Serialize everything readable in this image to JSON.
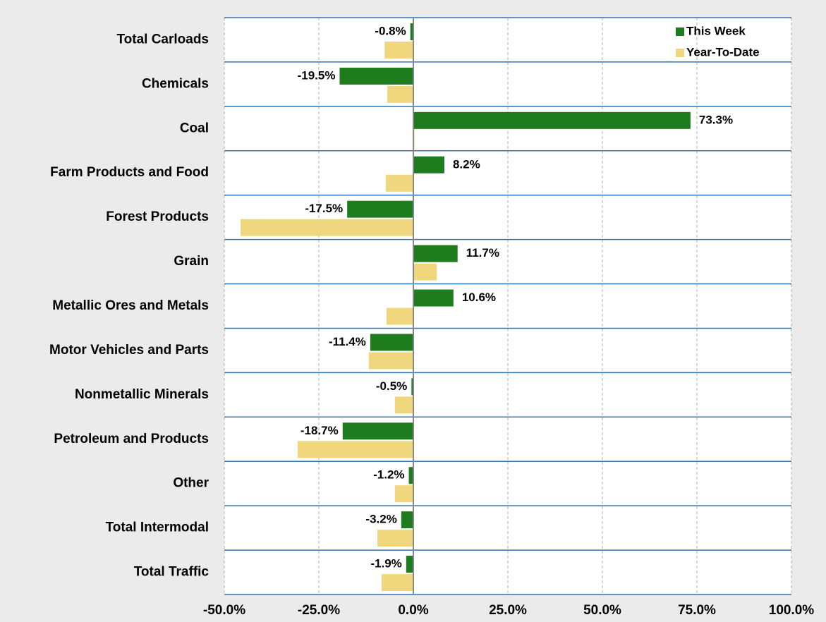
{
  "chart_data": {
    "type": "barh",
    "categories": [
      "Total Carloads",
      "Chemicals",
      "Coal",
      "Farm Products and Food",
      "Forest Products",
      "Grain",
      "Metallic Ores and Metals",
      "Motor Vehicles and Parts",
      "Nonmetallic Minerals",
      "Petroleum and Products",
      "Other",
      "Total Intermodal",
      "Total Traffic"
    ],
    "series": [
      {
        "name": "This Week",
        "color": "#1e7b1e",
        "values": [
          -0.8,
          -19.5,
          73.3,
          8.2,
          -17.5,
          11.7,
          10.6,
          -11.4,
          -0.5,
          -18.7,
          -1.2,
          -3.2,
          -1.9
        ],
        "value_labels": [
          "-0.8%",
          "-19.5%",
          "73.3%",
          "8.2%",
          "-17.5%",
          "11.7%",
          "10.6%",
          "-11.4%",
          "-0.5%",
          "-18.7%",
          "-1.2%",
          "-3.2%",
          "-1.9%"
        ]
      },
      {
        "name": "Year-To-Date",
        "color": "#f0d77e",
        "values": [
          -7.6,
          -6.9,
          0.3,
          -7.3,
          -45.7,
          6.2,
          -7.1,
          -11.8,
          -4.9,
          -30.6,
          -4.9,
          -9.5,
          -8.4
        ]
      }
    ],
    "xlim": [
      -50,
      100
    ],
    "xticks": [
      {
        "value": -50,
        "label": "-50.0%"
      },
      {
        "value": -25,
        "label": "-25.0%"
      },
      {
        "value": 0,
        "label": "0.0%"
      },
      {
        "value": 25,
        "label": "25.0%"
      },
      {
        "value": 50,
        "label": "50.0%"
      },
      {
        "value": 75,
        "label": "75.0%"
      },
      {
        "value": 100,
        "label": "100.0%"
      }
    ],
    "grid": true,
    "legend": "upper right"
  }
}
